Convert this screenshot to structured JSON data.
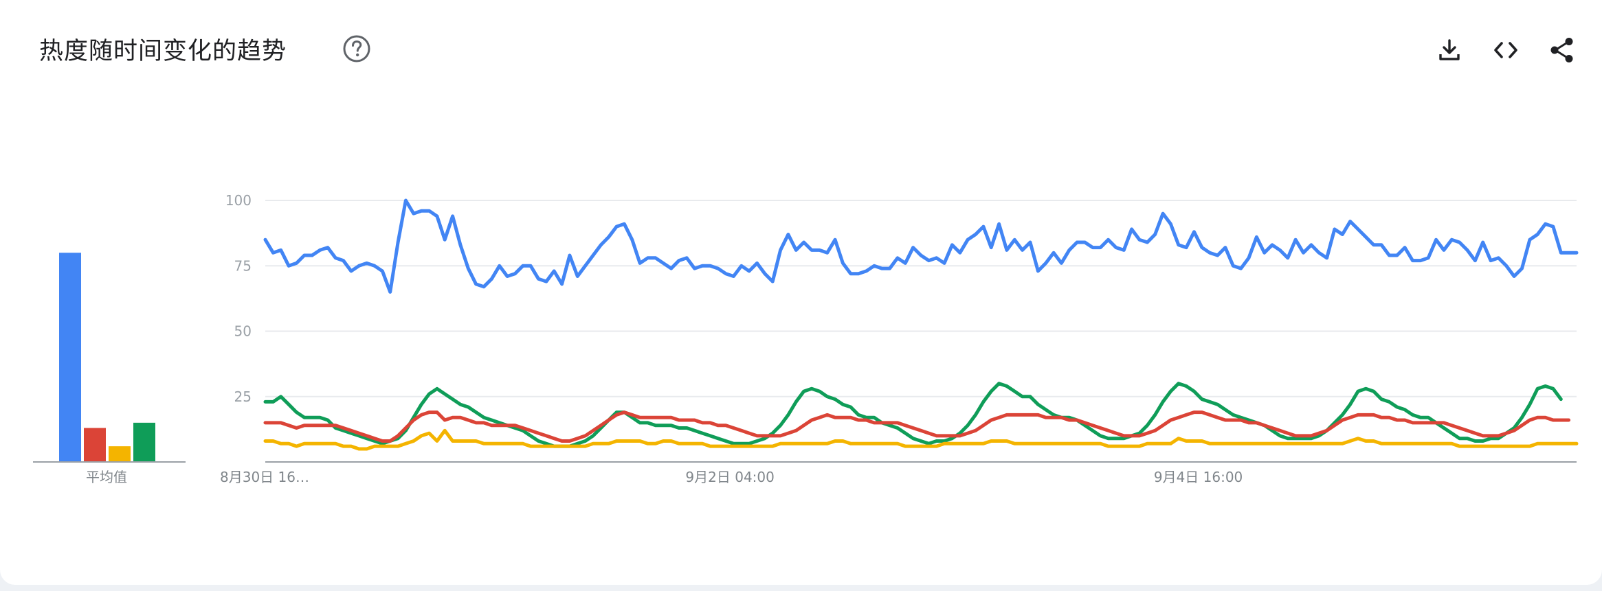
{
  "header": {
    "title": "热度随时间变化的趋势",
    "help_icon": "help-circle-icon",
    "download_icon": "download-icon",
    "embed_icon": "code-icon",
    "share_icon": "share-icon"
  },
  "colors": {
    "blue": "#4285f4",
    "red": "#db4437",
    "yellow": "#f4b400",
    "green": "#0f9d58"
  },
  "chart_data": [
    {
      "type": "bar",
      "xlabel": "平均值",
      "ylim": [
        0,
        100
      ],
      "series": [
        {
          "color": "#4285f4",
          "values": [
            80
          ]
        },
        {
          "color": "#db4437",
          "values": [
            13
          ]
        },
        {
          "color": "#f4b400",
          "values": [
            6
          ]
        },
        {
          "color": "#0f9d58",
          "values": [
            15
          ]
        }
      ]
    },
    {
      "type": "line",
      "ylim": [
        0,
        100
      ],
      "yticks": [
        25,
        50,
        75,
        100
      ],
      "grid": true,
      "x_tick_labels": [
        "8月30日 16…",
        "9月2日 04:00",
        "9月4日 16:00"
      ],
      "x_tick_index": [
        0,
        60,
        120
      ],
      "series": [
        {
          "color": "#4285f4",
          "values": [
            85,
            80,
            81,
            75,
            76,
            79,
            79,
            81,
            82,
            78,
            77,
            73,
            75,
            76,
            75,
            73,
            65,
            84,
            100,
            95,
            96,
            96,
            94,
            85,
            94,
            83,
            74,
            68,
            67,
            70,
            75,
            71,
            72,
            75,
            75,
            70,
            69,
            73,
            68,
            79,
            71,
            75,
            79,
            83,
            86,
            90,
            91,
            85,
            76,
            78,
            78,
            76,
            74,
            77,
            78,
            74,
            75,
            75,
            74,
            72,
            71,
            75,
            73,
            76,
            72,
            69,
            81,
            87,
            81,
            84,
            81,
            81,
            80,
            85,
            76,
            72,
            72,
            73,
            75,
            74,
            74,
            78,
            76,
            82,
            79,
            77,
            78,
            76,
            83,
            80,
            85,
            87,
            90,
            82,
            91,
            81,
            85,
            81,
            84,
            73,
            76,
            80,
            76,
            81,
            84,
            84,
            82,
            82,
            85,
            82,
            81,
            89,
            85,
            84,
            87,
            95,
            91,
            83,
            82,
            88,
            82,
            80,
            79,
            82,
            75,
            74,
            78,
            86,
            80,
            83,
            81,
            78,
            85,
            80,
            83,
            80,
            78,
            89,
            87,
            92,
            89,
            86,
            83,
            83,
            79,
            79,
            82,
            77,
            77,
            78,
            85,
            81,
            85,
            84,
            81,
            77,
            84,
            77,
            78,
            75,
            71,
            74,
            85,
            87,
            91,
            90,
            80,
            80,
            80
          ]
        },
        {
          "color": "#db4437",
          "values": [
            15,
            15,
            15,
            14,
            13,
            14,
            14,
            14,
            14,
            14,
            13,
            12,
            11,
            10,
            9,
            8,
            8,
            10,
            13,
            16,
            18,
            19,
            19,
            16,
            17,
            17,
            16,
            15,
            15,
            14,
            14,
            14,
            14,
            13,
            12,
            11,
            10,
            9,
            8,
            8,
            9,
            10,
            12,
            14,
            16,
            18,
            19,
            18,
            17,
            17,
            17,
            17,
            17,
            16,
            16,
            16,
            15,
            15,
            14,
            14,
            13,
            12,
            11,
            10,
            10,
            10,
            10,
            11,
            12,
            14,
            16,
            17,
            18,
            17,
            17,
            17,
            16,
            16,
            15,
            15,
            15,
            15,
            14,
            13,
            12,
            11,
            10,
            10,
            10,
            10,
            11,
            12,
            14,
            16,
            17,
            18,
            18,
            18,
            18,
            18,
            17,
            17,
            17,
            16,
            16,
            15,
            14,
            13,
            12,
            11,
            10,
            10,
            10,
            11,
            12,
            14,
            16,
            17,
            18,
            19,
            19,
            18,
            17,
            16,
            16,
            16,
            15,
            15,
            14,
            13,
            12,
            11,
            10,
            10,
            10,
            11,
            12,
            14,
            16,
            17,
            18,
            18,
            18,
            17,
            17,
            16,
            16,
            15,
            15,
            15,
            15,
            15,
            14,
            13,
            12,
            11,
            10,
            10,
            10,
            11,
            12,
            14,
            16,
            17,
            17,
            16,
            16,
            16
          ]
        },
        {
          "color": "#f4b400",
          "values": [
            8,
            8,
            7,
            7,
            6,
            7,
            7,
            7,
            7,
            7,
            6,
            6,
            5,
            5,
            6,
            6,
            6,
            6,
            7,
            8,
            10,
            11,
            8,
            12,
            8,
            8,
            8,
            8,
            7,
            7,
            7,
            7,
            7,
            7,
            6,
            6,
            6,
            6,
            6,
            6,
            6,
            6,
            7,
            7,
            7,
            8,
            8,
            8,
            8,
            7,
            7,
            8,
            8,
            7,
            7,
            7,
            7,
            6,
            6,
            6,
            6,
            6,
            6,
            6,
            6,
            6,
            7,
            7,
            7,
            7,
            7,
            7,
            7,
            8,
            8,
            7,
            7,
            7,
            7,
            7,
            7,
            7,
            6,
            6,
            6,
            6,
            6,
            7,
            7,
            7,
            7,
            7,
            7,
            8,
            8,
            8,
            7,
            7,
            7,
            7,
            7,
            7,
            7,
            7,
            7,
            7,
            7,
            7,
            6,
            6,
            6,
            6,
            6,
            7,
            7,
            7,
            7,
            9,
            8,
            8,
            8,
            7,
            7,
            7,
            7,
            7,
            7,
            7,
            7,
            7,
            7,
            7,
            7,
            7,
            7,
            7,
            7,
            7,
            7,
            8,
            9,
            8,
            8,
            7,
            7,
            7,
            7,
            7,
            7,
            7,
            7,
            7,
            7,
            6,
            6,
            6,
            6,
            6,
            6,
            6,
            6,
            6,
            6,
            7,
            7,
            7,
            7,
            7,
            7
          ]
        },
        {
          "color": "#0f9d58",
          "values": [
            23,
            23,
            25,
            22,
            19,
            17,
            17,
            17,
            16,
            13,
            12,
            11,
            10,
            9,
            8,
            7,
            8,
            9,
            12,
            17,
            22,
            26,
            28,
            26,
            24,
            22,
            21,
            19,
            17,
            16,
            15,
            14,
            13,
            12,
            10,
            8,
            7,
            6,
            6,
            6,
            7,
            8,
            10,
            13,
            16,
            19,
            19,
            17,
            15,
            15,
            14,
            14,
            14,
            13,
            13,
            12,
            11,
            10,
            9,
            8,
            7,
            7,
            7,
            8,
            9,
            11,
            14,
            18,
            23,
            27,
            28,
            27,
            25,
            24,
            22,
            21,
            18,
            17,
            17,
            15,
            14,
            13,
            11,
            9,
            8,
            7,
            8,
            8,
            9,
            11,
            14,
            18,
            23,
            27,
            30,
            29,
            27,
            25,
            25,
            22,
            20,
            18,
            17,
            17,
            16,
            14,
            12,
            10,
            9,
            9,
            9,
            10,
            11,
            14,
            18,
            23,
            27,
            30,
            29,
            27,
            24,
            23,
            22,
            20,
            18,
            17,
            16,
            15,
            14,
            12,
            10,
            9,
            9,
            9,
            9,
            10,
            12,
            15,
            18,
            22,
            27,
            28,
            27,
            24,
            23,
            21,
            20,
            18,
            17,
            17,
            15,
            13,
            11,
            9,
            9,
            8,
            8,
            9,
            9,
            11,
            13,
            17,
            22,
            28,
            29,
            28,
            24
          ]
        }
      ]
    }
  ]
}
